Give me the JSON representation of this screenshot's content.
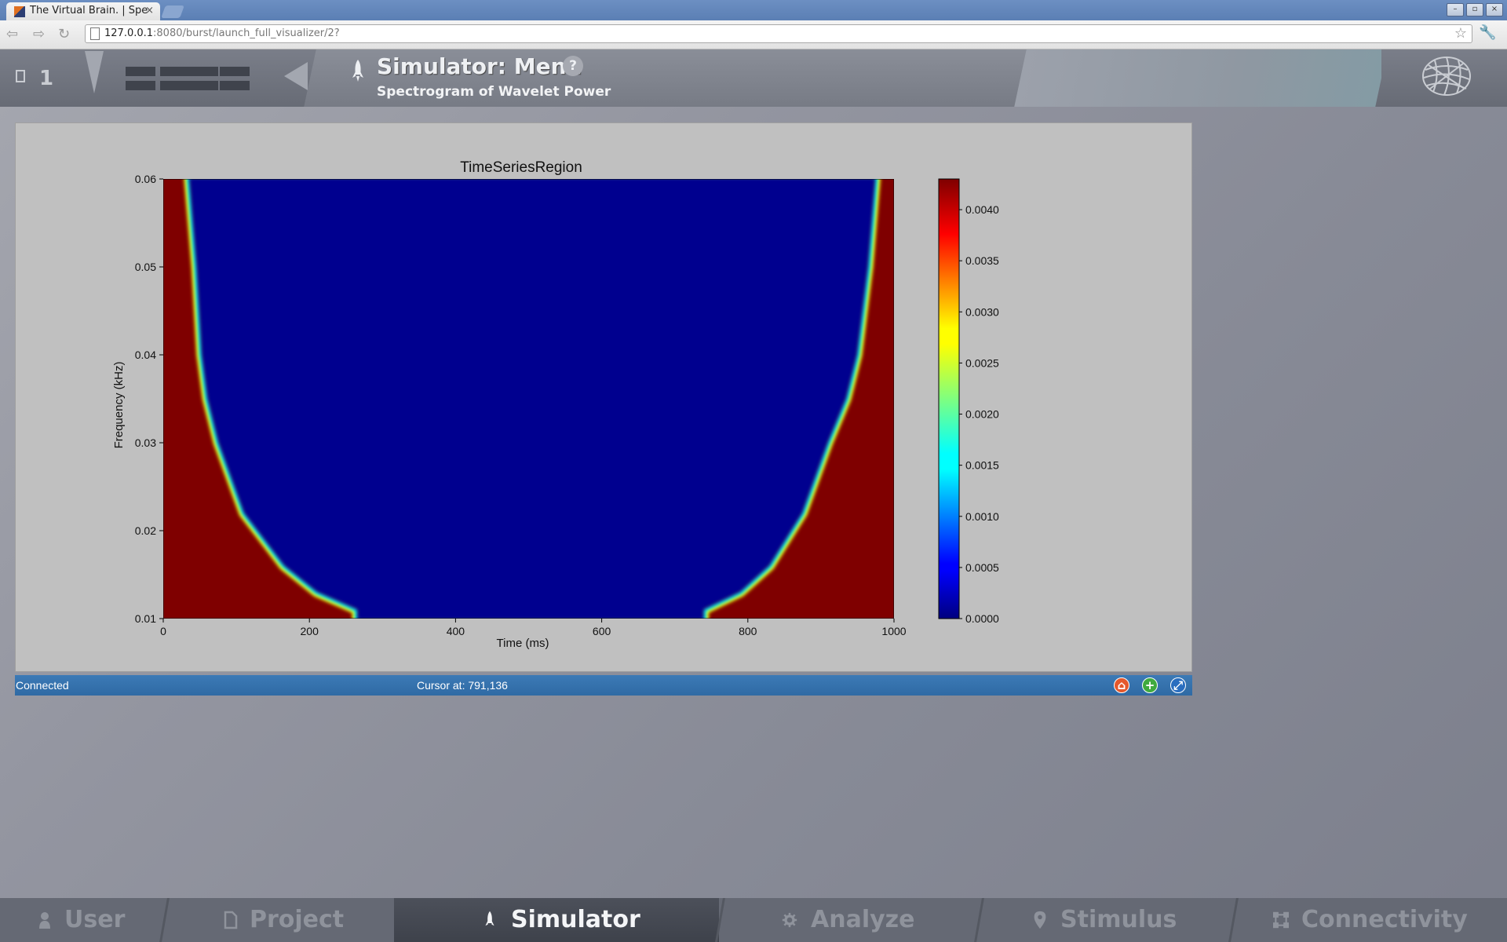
{
  "browser": {
    "tab_title": "The Virtual Brain. | Spe",
    "tab_close": "×",
    "url_host": "127.0.0.1",
    "url_rest": ":8080/burst/launch_full_visualizer/2?",
    "window_controls": [
      "–",
      "▫",
      "×"
    ]
  },
  "app_header": {
    "project_count": "1",
    "title": "Simulator: Menu",
    "help": "?",
    "subtitle": "Spectrogram of Wavelet Power"
  },
  "chart_data": {
    "type": "heatmap",
    "title": "TimeSeriesRegion",
    "xlabel": "Time (ms)",
    "ylabel": "Frequency (kHz)",
    "xlim": [
      0,
      1000
    ],
    "ylim": [
      0.01,
      0.06
    ],
    "x_ticks": [
      "0",
      "200",
      "400",
      "600",
      "800",
      "1000"
    ],
    "y_ticks": [
      "0.01",
      "0.02",
      "0.03",
      "0.04",
      "0.05",
      "0.06"
    ],
    "colorbar": {
      "colormap": "jet",
      "range": [
        0.0,
        0.0043
      ],
      "ticks": [
        "0.0000",
        "0.0005",
        "0.0010",
        "0.0015",
        "0.0020",
        "0.0025",
        "0.0030",
        "0.0035",
        "0.0040"
      ]
    },
    "description_values": {
      "left_edge_boundary": [
        [
          35,
          0.06
        ],
        [
          45,
          0.05
        ],
        [
          52,
          0.04
        ],
        [
          60,
          0.035
        ],
        [
          75,
          0.03
        ],
        [
          110,
          0.022
        ],
        [
          165,
          0.016
        ],
        [
          210,
          0.013
        ],
        [
          265,
          0.011
        ]
      ],
      "right_edge_boundary": [
        [
          975,
          0.06
        ],
        [
          965,
          0.05
        ],
        [
          950,
          0.04
        ],
        [
          935,
          0.035
        ],
        [
          910,
          0.03
        ],
        [
          875,
          0.022
        ],
        [
          830,
          0.016
        ],
        [
          790,
          0.013
        ],
        [
          740,
          0.011
        ]
      ],
      "outside_value": 0.0043,
      "inside_value": 0.0
    }
  },
  "statusbar": {
    "connection": "Connected",
    "cursor": "Cursor at: 791,136"
  },
  "bottom_nav": [
    {
      "label": "User",
      "icon": "user-icon"
    },
    {
      "label": "Project",
      "icon": "document-icon"
    },
    {
      "label": "Simulator",
      "icon": "rocket-icon",
      "active": true
    },
    {
      "label": "Analyze",
      "icon": "gear-icon"
    },
    {
      "label": "Stimulus",
      "icon": "pin-icon"
    },
    {
      "label": "Connectivity",
      "icon": "network-icon"
    }
  ]
}
